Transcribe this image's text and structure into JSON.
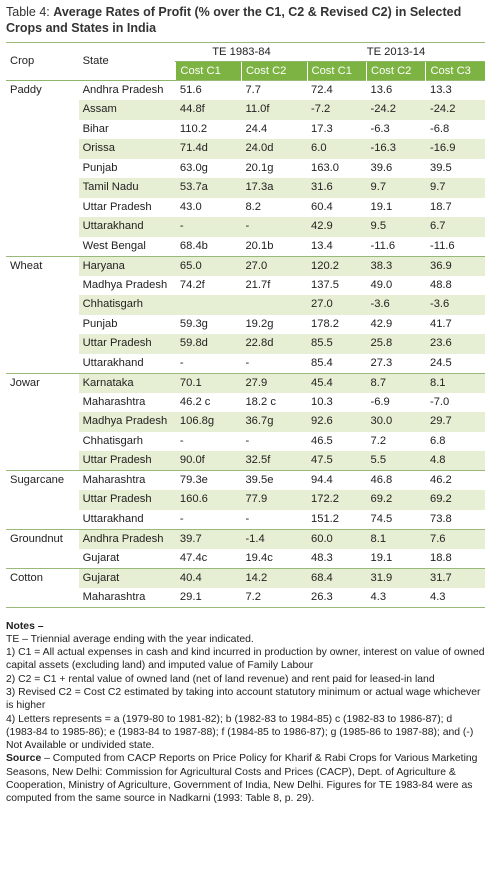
{
  "title_prefix": "Table 4:",
  "title": "Average Rates of Profit (% over the C1, C2 & Revised C2) in Selected Crops and States in India",
  "table": {
    "header": {
      "crop": "Crop",
      "state": "State",
      "periods": [
        "TE 1983-84",
        "TE 2013-14"
      ],
      "costs": [
        "Cost C1",
        "Cost C2",
        "Cost C1",
        "Cost C2",
        "Cost C3"
      ]
    },
    "groups": [
      {
        "crop": "Paddy",
        "rows": [
          {
            "state": "Andhra Pradesh",
            "values": [
              "51.6",
              "7.7",
              "72.4",
              "13.6",
              "13.3"
            ]
          },
          {
            "state": "Assam",
            "values": [
              "44.8f",
              "11.0f",
              "-7.2",
              "-24.2",
              "-24.2"
            ]
          },
          {
            "state": "Bihar",
            "values": [
              "110.2",
              "24.4",
              "17.3",
              "-6.3",
              "-6.8"
            ]
          },
          {
            "state": "Orissa",
            "values": [
              "71.4d",
              "24.0d",
              "6.0",
              "-16.3",
              "-16.9"
            ]
          },
          {
            "state": "Punjab",
            "values": [
              "63.0g",
              "20.1g",
              "163.0",
              "39.6",
              "39.5"
            ]
          },
          {
            "state": "Tamil Nadu",
            "values": [
              "53.7a",
              "17.3a",
              "31.6",
              "9.7",
              "9.7"
            ]
          },
          {
            "state": "Uttar Pradesh",
            "values": [
              "43.0",
              "8.2",
              "60.4",
              "19.1",
              "18.7"
            ]
          },
          {
            "state": "Uttarakhand",
            "values": [
              "-",
              "-",
              "42.9",
              "9.5",
              "6.7"
            ]
          },
          {
            "state": "West Bengal",
            "values": [
              "68.4b",
              "20.1b",
              "13.4",
              "-11.6",
              "-11.6"
            ]
          }
        ]
      },
      {
        "crop": "Wheat",
        "rows": [
          {
            "state": "Haryana",
            "values": [
              "65.0",
              "27.0",
              "120.2",
              "38.3",
              "36.9"
            ]
          },
          {
            "state": "Madhya Pradesh",
            "values": [
              "74.2f",
              "21.7f",
              "137.5",
              "49.0",
              "48.8"
            ]
          },
          {
            "state": "Chhatisgarh",
            "values": [
              null,
              null,
              "27.0",
              "-3.6",
              "-3.6"
            ]
          },
          {
            "state": "Punjab",
            "values": [
              "59.3g",
              "19.2g",
              "178.2",
              "42.9",
              "41.7"
            ]
          },
          {
            "state": "Uttar Pradesh",
            "values": [
              "59.8d",
              "22.8d",
              "85.5",
              "25.8",
              "23.6"
            ]
          },
          {
            "state": "Uttarakhand",
            "values": [
              "-",
              "-",
              "85.4",
              "27.3",
              "24.5"
            ]
          }
        ]
      },
      {
        "crop": "Jowar",
        "rows": [
          {
            "state": "Karnataka",
            "values": [
              "70.1",
              "27.9",
              "45.4",
              "8.7",
              "8.1"
            ]
          },
          {
            "state": "Maharashtra",
            "values": [
              "46.2 c",
              "18.2 c",
              "10.3",
              "-6.9",
              "-7.0"
            ]
          },
          {
            "state": "Madhya Pradesh",
            "values": [
              "106.8g",
              "36.7g",
              "92.6",
              "30.0",
              "29.7"
            ]
          },
          {
            "state": "Chhatisgarh",
            "values": [
              "-",
              "-",
              "46.5",
              "7.2",
              "6.8"
            ]
          },
          {
            "state": "Uttar Pradesh",
            "values": [
              "90.0f",
              "32.5f",
              "47.5",
              "5.5",
              "4.8"
            ]
          }
        ]
      },
      {
        "crop": "Sugarcane",
        "rows": [
          {
            "state": "Maharashtra",
            "values": [
              "79.3e",
              "39.5e",
              "94.4",
              "46.8",
              "46.2"
            ]
          },
          {
            "state": "Uttar Pradesh",
            "values": [
              "160.6",
              "77.9",
              "172.2",
              "69.2",
              "69.2"
            ]
          },
          {
            "state": "Uttarakhand",
            "values": [
              "-",
              "-",
              "151.2",
              "74.5",
              "73.8"
            ]
          }
        ]
      },
      {
        "crop": "Groundnut",
        "rows": [
          {
            "state": "Andhra Pradesh",
            "values": [
              "39.7",
              "-1.4",
              "60.0",
              "8.1",
              "7.6"
            ]
          },
          {
            "state": "Gujarat",
            "values": [
              "47.4c",
              "19.4c",
              "48.3",
              "19.1",
              "18.8"
            ]
          }
        ]
      },
      {
        "crop": "Cotton",
        "rows": [
          {
            "state": "Gujarat",
            "values": [
              "40.4",
              "14.2",
              "68.4",
              "31.9",
              "31.7"
            ]
          },
          {
            "state": "Maharashtra",
            "values": [
              "29.1",
              "7.2",
              "26.3",
              "4.3",
              "4.3"
            ]
          }
        ]
      }
    ]
  },
  "notes": {
    "heading": "Notes –",
    "lines": [
      "TE – Triennial average ending with the year indicated.",
      "1) C1 = All actual expenses in cash and kind incurred in production by owner, interest on value of owned capital assets (excluding land) and imputed value of Family Labour",
      "2) C2 = C1 + rental value of owned land (net of land revenue) and rent paid for leased-in land",
      "3) Revised C2 = Cost C2 estimated by taking into account statutory minimum or actual wage whichever is higher",
      "4) Letters represents = a (1979-80 to 1981-82); b (1982-83 to 1984-85) c (1982-83 to 1986-87); d (1983-84 to 1985-86); e (1983-84 to 1987-88); f (1984-85 to 1986-87); g (1985-86 to 1987-88); and (-) Not Available or undivided state."
    ]
  },
  "source": {
    "label": "Source",
    "text": "– Computed from CACP Reports on Price Policy for Kharif & Rabi Crops for Various Marketing Seasons, New Delhi: Commission for Agricultural Costs and Prices (CACP), Dept. of Agriculture & Cooperation, Ministry of Agriculture, Government of India, New Delhi. Figures for TE 1983-84 were as computed from the same source in Nadkarni (1993: Table 8, p. 29)."
  }
}
